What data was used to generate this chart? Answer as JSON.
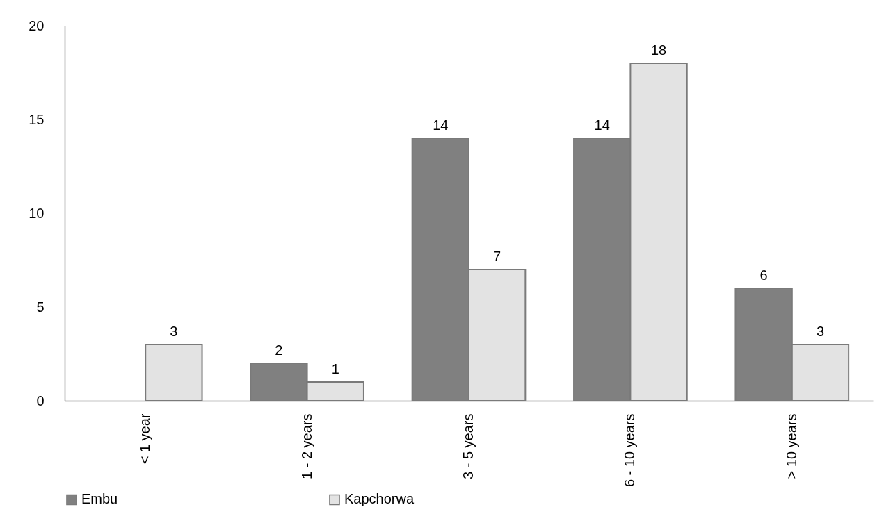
{
  "chart_data": {
    "type": "bar",
    "categories": [
      "< 1 year",
      "1 - 2 years",
      "3 - 5 years",
      "6 - 10 years",
      "> 10 years"
    ],
    "series": [
      {
        "name": "Embu",
        "color": "#808080",
        "values": [
          null,
          2,
          14,
          14,
          6
        ]
      },
      {
        "name": "Kapchorwa",
        "color": "#e3e3e3",
        "values": [
          3,
          1,
          7,
          18,
          3
        ]
      }
    ],
    "ylim": [
      0,
      20
    ],
    "yticks": [
      0,
      5,
      10,
      15,
      20
    ],
    "grid": false,
    "legend": "bottom",
    "data_labels": true
  }
}
